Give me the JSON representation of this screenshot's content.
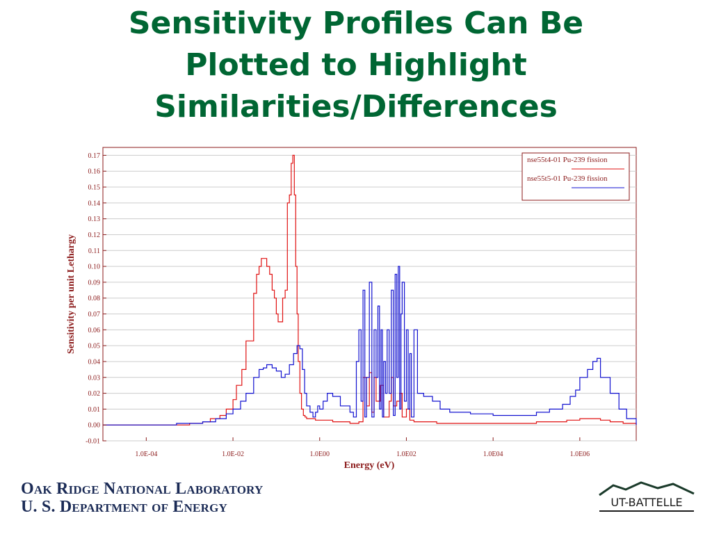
{
  "slide": {
    "title_lines": [
      "Sensitivity Profiles Can Be",
      "Plotted to Highlight",
      "Similarities/Differences"
    ]
  },
  "footer": {
    "org_line1": "Oak Ridge National Laboratory",
    "org_line2": "U. S. Department of Energy",
    "logo_text": "UT-BATTELLE"
  },
  "colors": {
    "title": "#006633",
    "axis_text": "#8b1a1a",
    "series_red": "#e01010",
    "series_blue": "#1010d0",
    "grid": "#cccccc",
    "footer_text": "#1a2a55"
  },
  "chart_data": {
    "type": "line",
    "title": "",
    "xlabel": "Energy (eV)",
    "ylabel": "Sensitivity per unit Lethargy",
    "xscale": "log",
    "xlim": [
      1e-05,
      20000000
    ],
    "ylim": [
      -0.01,
      0.175
    ],
    "x_ticks": [
      0.0001,
      0.01,
      1,
      100,
      10000,
      1000000
    ],
    "x_tick_labels": [
      "1.0E-04",
      "1.0E-02",
      "1.0E00",
      "1.0E02",
      "1.0E04",
      "1.0E06"
    ],
    "y_ticks": [
      -0.01,
      0.0,
      0.01,
      0.02,
      0.03,
      0.04,
      0.05,
      0.06,
      0.07,
      0.08,
      0.09,
      0.1,
      0.11,
      0.12,
      0.13,
      0.14,
      0.15,
      0.16,
      0.17
    ],
    "y_tick_labels": [
      "-0.01",
      "0.00",
      "0.01",
      "0.02",
      "0.03",
      "0.04",
      "0.05",
      "0.06",
      "0.07",
      "0.08",
      "0.09",
      "0.10",
      "0.11",
      "0.12",
      "0.13",
      "0.14",
      "0.15",
      "0.16",
      "0.17"
    ],
    "grid": "horizontal",
    "legend_position": "top-right",
    "series": [
      {
        "name": "nse55t4-01 Pu-239 fission",
        "color": "#e01010",
        "x": [
          1e-05,
          0.0003,
          0.001,
          0.002,
          0.003,
          0.005,
          0.007,
          0.01,
          0.012,
          0.016,
          0.02,
          0.025,
          0.03,
          0.035,
          0.04,
          0.045,
          0.05,
          0.06,
          0.07,
          0.08,
          0.09,
          0.1,
          0.11,
          0.12,
          0.14,
          0.16,
          0.18,
          0.2,
          0.22,
          0.24,
          0.26,
          0.28,
          0.3,
          0.32,
          0.35,
          0.38,
          0.42,
          0.46,
          0.5,
          0.6,
          0.8,
          1,
          2,
          5,
          8,
          10,
          12,
          14,
          16,
          18,
          20,
          25,
          30,
          40,
          45,
          50,
          60,
          70,
          80,
          100,
          120,
          150,
          200,
          500,
          2000,
          10000,
          100000,
          500000,
          1000000,
          2000000,
          3000000,
          5000000,
          10000000,
          20000000
        ],
        "y": [
          0.0,
          0.0,
          0.001,
          0.002,
          0.004,
          0.006,
          0.01,
          0.016,
          0.025,
          0.035,
          0.053,
          0.053,
          0.083,
          0.095,
          0.1,
          0.105,
          0.105,
          0.1,
          0.095,
          0.085,
          0.08,
          0.07,
          0.065,
          0.065,
          0.08,
          0.085,
          0.14,
          0.145,
          0.165,
          0.17,
          0.145,
          0.1,
          0.07,
          0.04,
          0.02,
          0.01,
          0.006,
          0.005,
          0.004,
          0.004,
          0.003,
          0.003,
          0.002,
          0.001,
          0.002,
          0.03,
          0.012,
          0.033,
          0.008,
          0.03,
          0.015,
          0.025,
          0.005,
          0.015,
          0.03,
          0.012,
          0.015,
          0.02,
          0.005,
          0.01,
          0.003,
          0.002,
          0.002,
          0.001,
          0.001,
          0.001,
          0.002,
          0.003,
          0.004,
          0.004,
          0.003,
          0.002,
          0.001,
          0.0
        ]
      },
      {
        "name": "nse55t5-01 Pu-239 fission",
        "color": "#1010d0",
        "x": [
          1e-05,
          0.0002,
          0.0005,
          0.001,
          0.002,
          0.004,
          0.007,
          0.01,
          0.015,
          0.02,
          0.03,
          0.04,
          0.05,
          0.06,
          0.08,
          0.1,
          0.13,
          0.16,
          0.2,
          0.25,
          0.3,
          0.35,
          0.4,
          0.45,
          0.5,
          0.6,
          0.7,
          0.8,
          0.9,
          1,
          1.2,
          1.5,
          2,
          3,
          5,
          6,
          7,
          8,
          9,
          10,
          11,
          12,
          14,
          16,
          18,
          20,
          22,
          24,
          26,
          28,
          30,
          33,
          36,
          40,
          45,
          50,
          55,
          60,
          65,
          70,
          75,
          80,
          90,
          100,
          110,
          120,
          130,
          150,
          180,
          200,
          250,
          400,
          600,
          1000,
          3000,
          10000,
          30000,
          100000,
          200000,
          400000,
          600000,
          800000,
          1000000,
          1500000,
          2000000,
          2500000,
          3000000,
          5000000,
          8000000,
          12000000,
          20000000
        ],
        "y": [
          0.0,
          0.0,
          0.001,
          0.001,
          0.002,
          0.004,
          0.007,
          0.01,
          0.015,
          0.02,
          0.03,
          0.035,
          0.036,
          0.038,
          0.036,
          0.034,
          0.03,
          0.032,
          0.038,
          0.045,
          0.05,
          0.048,
          0.035,
          0.02,
          0.012,
          0.008,
          0.005,
          0.008,
          0.012,
          0.01,
          0.015,
          0.02,
          0.018,
          0.012,
          0.008,
          0.005,
          0.04,
          0.06,
          0.015,
          0.085,
          0.005,
          0.03,
          0.09,
          0.005,
          0.06,
          0.03,
          0.075,
          0.01,
          0.06,
          0.005,
          0.04,
          0.02,
          0.06,
          0.02,
          0.085,
          0.006,
          0.095,
          0.03,
          0.1,
          0.01,
          0.07,
          0.09,
          0.015,
          0.06,
          0.01,
          0.045,
          0.005,
          0.06,
          0.02,
          0.02,
          0.018,
          0.015,
          0.01,
          0.008,
          0.007,
          0.006,
          0.006,
          0.008,
          0.01,
          0.013,
          0.018,
          0.022,
          0.03,
          0.035,
          0.04,
          0.042,
          0.03,
          0.02,
          0.01,
          0.004,
          0.0
        ]
      }
    ]
  }
}
